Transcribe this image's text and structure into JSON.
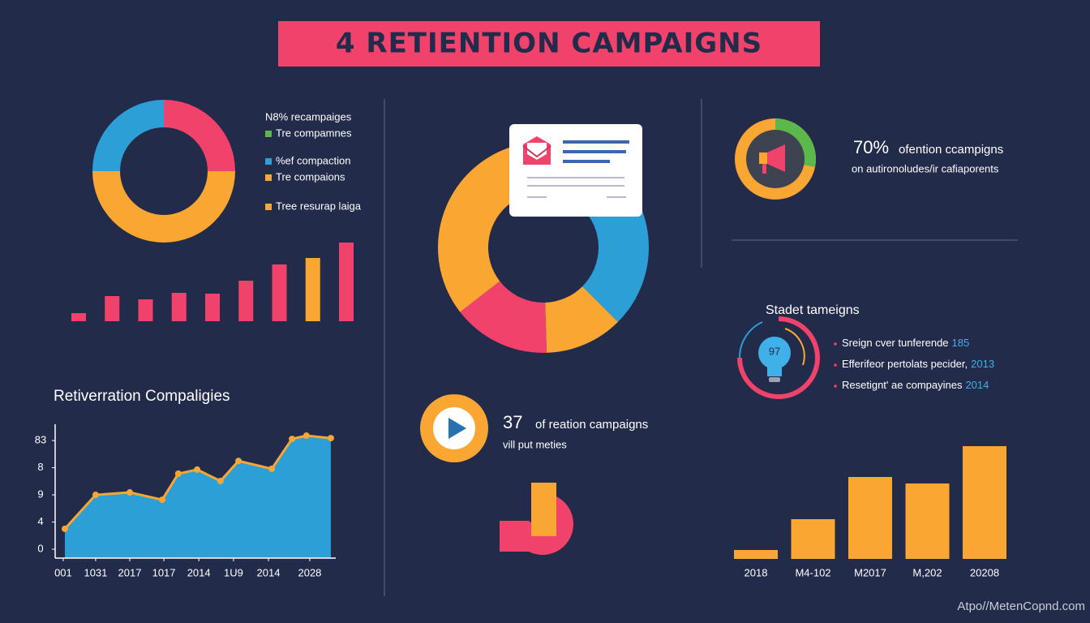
{
  "title": "4 RETIENTION CAMPAIGNS",
  "legend": [
    {
      "label": "N8% recampaiges"
    },
    {
      "label": "Tre compamnes",
      "color": "#5cb84a"
    },
    {
      "label": "%ef compaction",
      "color": "#2b9fd6"
    },
    {
      "label": "Tre compaions",
      "color": "#f9a632"
    },
    {
      "label": "Tree resurap laiga",
      "color": "#f9a632"
    }
  ],
  "chart_data": [
    {
      "type": "donut",
      "values": [
        25,
        50,
        25
      ],
      "colors": [
        "#f0426a",
        "#f9a632",
        "#2b9fd6"
      ]
    },
    {
      "type": "bar",
      "values": [
        10,
        31,
        27,
        35,
        34,
        50,
        70,
        78,
        97
      ],
      "colors": [
        "#f0426a",
        "#f0426a",
        "#f0426a",
        "#f0426a",
        "#f0426a",
        "#f0426a",
        "#f0426a",
        "#f9a632",
        "#f0426a"
      ]
    },
    {
      "type": "line",
      "title": "Retiverration Compaligies",
      "x": [
        3.5,
        14.6,
        26.9,
        38.6,
        44.4,
        51.2,
        59.6,
        66.1,
        78.1,
        85.4,
        90.6,
        99.4
      ],
      "values": [
        0.75,
        2.0,
        2.09,
        1.82,
        2.78,
        2.93,
        2.51,
        3.25,
        2.96,
        4.06,
        4.18,
        4.09
      ],
      "xlim": [
        0,
        100
      ],
      "xticks": [
        {
          "value": 2.9,
          "label": "001"
        },
        {
          "value": 14.6,
          "label": "1031"
        },
        {
          "value": 26.9,
          "label": "2017"
        },
        {
          "value": 39.2,
          "label": "1017"
        },
        {
          "value": 51.8,
          "label": "2014"
        },
        {
          "value": 64.3,
          "label": "1U9"
        },
        {
          "value": 76.9,
          "label": "2014"
        },
        {
          "value": 91.8,
          "label": "2028"
        }
      ],
      "ylim": [
        0,
        4.6
      ],
      "yticks": [
        0,
        {
          "value": 1,
          "label": "4"
        },
        {
          "value": 2,
          "label": "9"
        },
        {
          "value": 3,
          "label": "8"
        },
        {
          "value": 4,
          "label": "83"
        }
      ],
      "color": "#f9a632",
      "fill": "#2b9fd6"
    },
    {
      "type": "donut",
      "values": [
        25,
        12,
        15,
        48
      ],
      "colors": [
        "#2b9fd6",
        "#f9a632",
        "#f0426a",
        "#f9a632"
      ],
      "startangle": 45
    },
    {
      "type": "bar",
      "categories": [
        "2018",
        "M4-102",
        "M2017",
        "M,202",
        "20208"
      ],
      "values": [
        11,
        49,
        101,
        93,
        139
      ],
      "color": "#f9a632"
    }
  ],
  "stat_video": {
    "number": "37",
    "text": "of reation campaigns",
    "subtext": "vill put meties"
  },
  "stat_top": {
    "number": "70%",
    "text": "ofention ccampigns",
    "subtext": "on autironoludes/ir cafiaporents"
  },
  "list": {
    "title": "Stadet tameigns",
    "badge": "97",
    "items": [
      {
        "text": "Sreign cver tunferende",
        "number": "185"
      },
      {
        "text": "Efferifeor pertolats pecider,",
        "number": "2013"
      },
      {
        "text": "Resetignt' ae compayines",
        "number": "2014"
      }
    ]
  },
  "footer": "Atpo//MetenCopnd.com"
}
